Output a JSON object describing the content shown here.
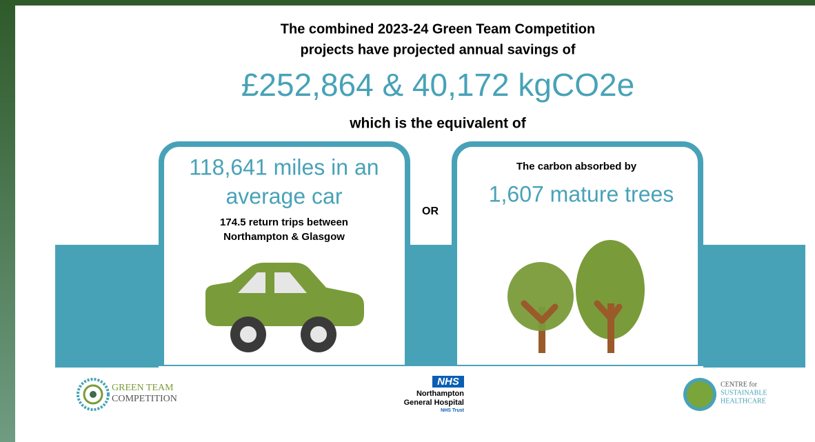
{
  "header": {
    "lines": [
      "The combined 2023-24 Green Team Competition",
      "projects have projected annual savings of"
    ],
    "highlight": "£252,864 & 40,172 kgCO2e",
    "sub": "which is the equivalent of"
  },
  "left_panel": {
    "headline": [
      "118,641 miles in an",
      "average car"
    ],
    "subtext": [
      "174.5 return trips between",
      "Northampton & Glasgow"
    ]
  },
  "separator": "OR",
  "right_panel": {
    "intro": "The carbon absorbed by",
    "headline": "1,607 mature trees"
  },
  "logos": {
    "green_team": [
      "GREEN TEAM",
      "COMPETITION"
    ],
    "nhs": {
      "badge": "NHS",
      "lines": [
        "Northampton",
        "General Hospital"
      ],
      "trust": "NHS Trust"
    },
    "csh": [
      "CENTRE for",
      "SUSTAINABLE",
      "HEALTHCARE"
    ]
  }
}
